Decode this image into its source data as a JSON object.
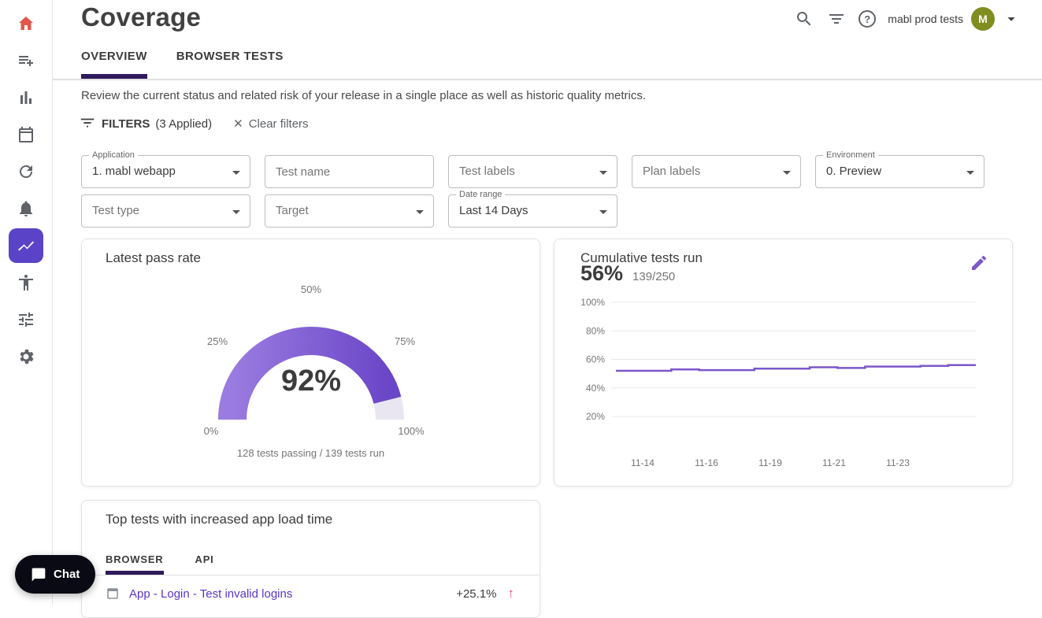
{
  "app": {
    "workspace_name": "mabl prod tests",
    "avatar_initial": "M"
  },
  "sidebar": {
    "items": [
      "home",
      "new-test",
      "results",
      "plans",
      "reruns",
      "notifications",
      "insights",
      "accessibility",
      "integrations",
      "settings"
    ],
    "active_item": "insights",
    "chat_label": "Chat"
  },
  "header": {
    "title": "Coverage",
    "tabs": [
      {
        "label": "OVERVIEW",
        "active": true
      },
      {
        "label": "BROWSER TESTS",
        "active": false
      }
    ],
    "description": "Review the current status and related risk of your release in a single place as well as historic quality metrics."
  },
  "filters": {
    "label": "FILTERS",
    "applied_text": "(3 Applied)",
    "clear_label": "Clear filters",
    "fields": {
      "application": {
        "label": "Application",
        "value": "1. mabl webapp"
      },
      "test_name": {
        "label": "Test name",
        "value": ""
      },
      "test_labels": {
        "label": "Test labels",
        "value": ""
      },
      "plan_labels": {
        "label": "Plan labels",
        "value": ""
      },
      "environment": {
        "label": "Environment",
        "value": "0. Preview"
      },
      "test_type": {
        "label": "Test type",
        "value": ""
      },
      "target": {
        "label": "Target",
        "value": ""
      },
      "date_range": {
        "label": "Date range",
        "value": "Last 14 Days"
      }
    }
  },
  "pass_rate_card": {
    "title": "Latest pass rate"
  },
  "cumulative_card": {
    "title": "Cumulative tests run",
    "percent": "56%",
    "fraction": "139/250"
  },
  "top_tests_card": {
    "title": "Top tests with increased app load time",
    "tabs": [
      {
        "label": "BROWSER",
        "active": true
      },
      {
        "label": "API",
        "active": false
      }
    ],
    "rows": [
      {
        "name": "App - Login - Test invalid logins",
        "delta": "+25.1%",
        "direction": "up"
      }
    ]
  },
  "icons": {
    "help": "?",
    "close": "✕",
    "arrow_up": "↑"
  },
  "colors": {
    "brand_purple": "#7b57c9",
    "dark_underline": "#2f1a5b",
    "sidebar_active": "#5b43c8",
    "link_purple": "#5b35c9",
    "positive_delta_arrow": "#ef476f",
    "avatar_bg": "#7f8e1e",
    "home_icon": "#e2574c",
    "text_primary": "#3c3c3c",
    "text_secondary": "#5f6368"
  },
  "chart_data": [
    {
      "type": "gauge",
      "title": "Latest pass rate",
      "value_percent": 92,
      "value_label": "92%",
      "ticks": [
        "0%",
        "25%",
        "50%",
        "75%",
        "100%"
      ],
      "caption": "128 tests passing / 139 tests run",
      "color": "#7b57c9",
      "track_color": "#e9e6f2"
    },
    {
      "type": "line",
      "title": "Cumulative tests run",
      "step": true,
      "grid": true,
      "ylim": [
        0,
        100
      ],
      "y_tick_labels": [
        "100%",
        "80%",
        "60%",
        "40%",
        "20%"
      ],
      "x_tick_labels": [
        "11-14",
        "11-16",
        "11-19",
        "11-21",
        "11-23"
      ],
      "values": [
        52,
        52,
        53,
        52.5,
        52.5,
        53.5,
        53.5,
        54.5,
        54,
        55,
        55,
        55.5,
        56,
        56
      ],
      "color": "#7b57c9"
    }
  ]
}
